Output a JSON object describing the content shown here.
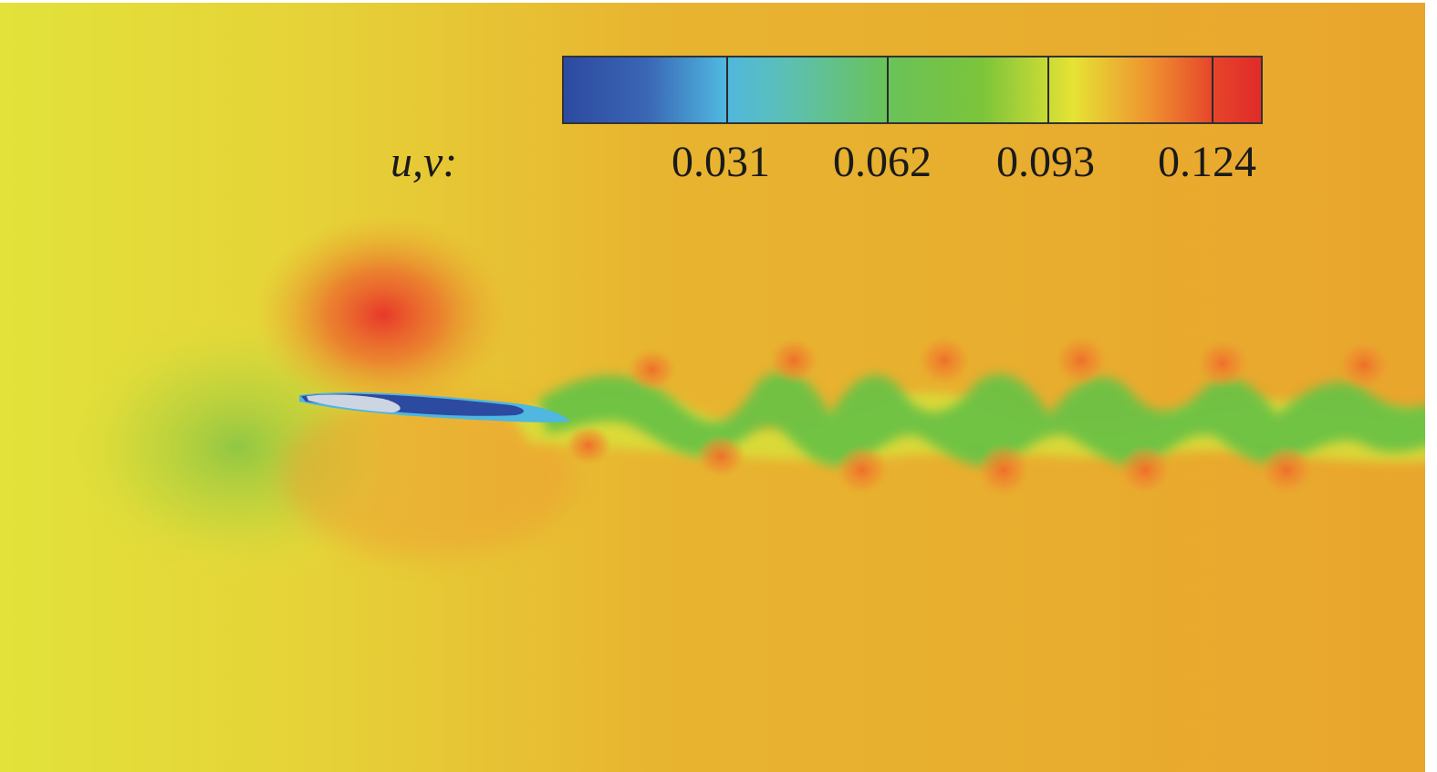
{
  "colorbar": {
    "label": "u,v:",
    "ticks": [
      "0.031",
      "0.062",
      "0.093",
      "0.124"
    ],
    "colors": [
      "#2c4aa0",
      "#4fb7e0",
      "#69c25a",
      "#e6e334",
      "#e87432",
      "#e02a2a"
    ]
  },
  "field": {
    "background_color": "#e8a72e",
    "inflow_color": "#e2e03a",
    "wake_color": "#6cc244",
    "vortex_color": "#ee7a2c",
    "body_color": "#2c4aa0"
  }
}
